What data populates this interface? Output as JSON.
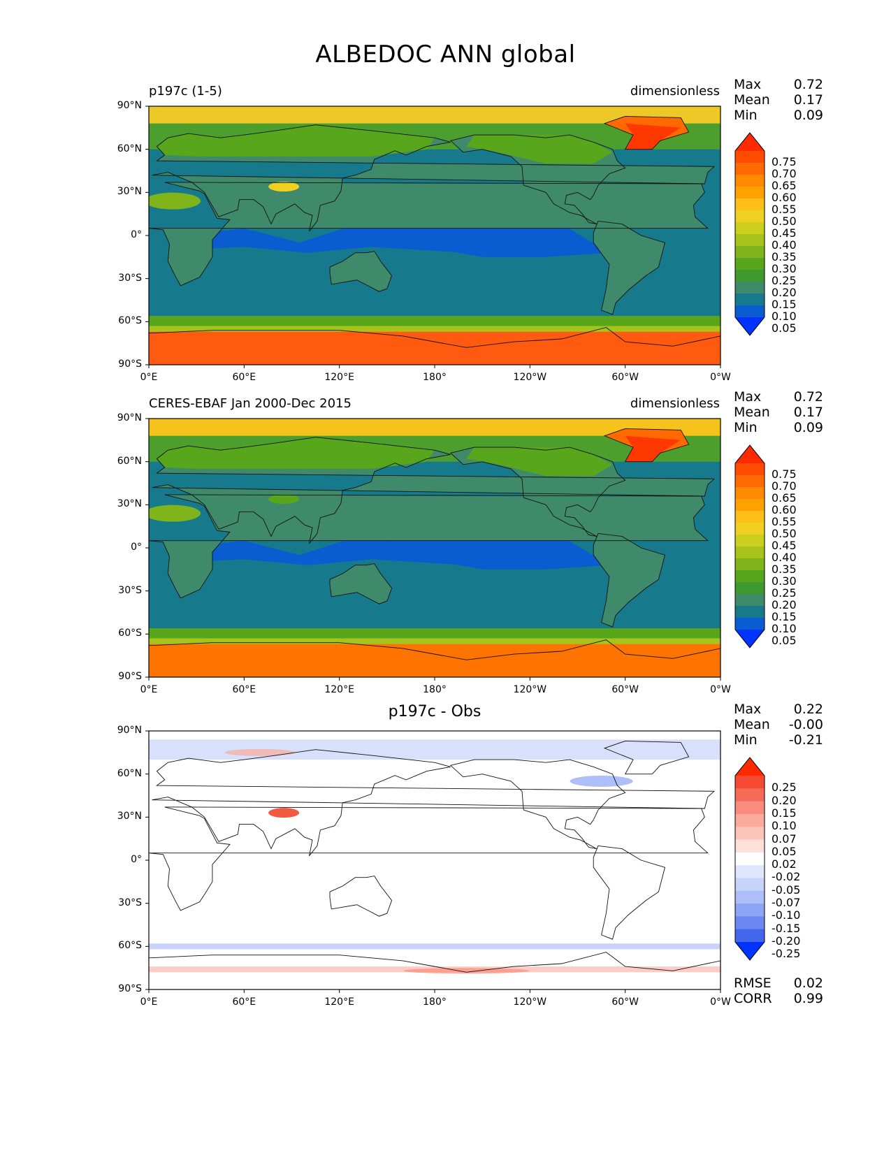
{
  "title": "ALBEDOC ANN global",
  "x_ticks": [
    "0°E",
    "60°E",
    "120°E",
    "180°",
    "120°W",
    "60°W",
    "0°W"
  ],
  "y_ticks": [
    "90°N",
    "60°N",
    "30°N",
    "0°",
    "30°S",
    "60°S",
    "90°S"
  ],
  "chart_data": [
    {
      "type": "heatmap",
      "left_label": "p197c (1-5)",
      "right_label": "dimensionless",
      "center_label": "",
      "stats": [
        {
          "name": "Max",
          "value": "0.72"
        },
        {
          "name": "Mean",
          "value": "0.17"
        },
        {
          "name": "Min",
          "value": "0.09"
        }
      ],
      "colorbar_levels": [
        "0.75",
        "0.70",
        "0.65",
        "0.60",
        "0.55",
        "0.50",
        "0.45",
        "0.40",
        "0.35",
        "0.30",
        "0.25",
        "0.20",
        "0.15",
        "0.10",
        "0.05"
      ],
      "colorbar_colors": [
        "#ff2a00",
        "#ff4c00",
        "#ff6a00",
        "#ff8a00",
        "#ffa200",
        "#ffbf1a",
        "#f0d020",
        "#cdcf1e",
        "#a8c31c",
        "#7fb51a",
        "#57a61c",
        "#3f9a2e",
        "#3f8a6a",
        "#177a8c",
        "#0a5cd0",
        "#0033ff"
      ],
      "regions": {
        "north_cap": "#ecc926",
        "south_cap": "#ff5a10",
        "ocean": "#177a8c",
        "tropical_ocean": "#0a5cd0",
        "land": "#3f8a6a"
      }
    },
    {
      "type": "heatmap",
      "left_label": "CERES-EBAF Jan 2000-Dec 2015",
      "right_label": "dimensionless",
      "center_label": "",
      "stats": [
        {
          "name": "Max",
          "value": "0.72"
        },
        {
          "name": "Mean",
          "value": "0.17"
        },
        {
          "name": "Min",
          "value": "0.09"
        }
      ],
      "colorbar_levels": [
        "0.75",
        "0.70",
        "0.65",
        "0.60",
        "0.55",
        "0.50",
        "0.45",
        "0.40",
        "0.35",
        "0.30",
        "0.25",
        "0.20",
        "0.15",
        "0.10",
        "0.05"
      ],
      "colorbar_colors": [
        "#ff2a00",
        "#ff4c00",
        "#ff6a00",
        "#ff8a00",
        "#ffa200",
        "#ffbf1a",
        "#f0d020",
        "#cdcf1e",
        "#a8c31c",
        "#7fb51a",
        "#57a61c",
        "#3f9a2e",
        "#3f8a6a",
        "#177a8c",
        "#0a5cd0",
        "#0033ff"
      ],
      "regions": {
        "north_cap": "#f6c21c",
        "south_cap": "#ff7400",
        "ocean": "#177a8c",
        "tropical_ocean": "#0a5cd0",
        "land": "#3f8a6a"
      }
    },
    {
      "type": "heatmap",
      "left_label": "",
      "right_label": "",
      "center_label": "p197c - Obs",
      "stats": [
        {
          "name": "Max",
          "value": "0.22"
        },
        {
          "name": "Mean",
          "value": "-0.00"
        },
        {
          "name": "Min",
          "value": "-0.21"
        }
      ],
      "extra_stats": [
        {
          "name": "RMSE",
          "value": "0.02"
        },
        {
          "name": "CORR",
          "value": "0.99"
        }
      ],
      "colorbar_levels": [
        "0.25",
        "0.20",
        "0.15",
        "0.10",
        "0.07",
        "0.05",
        "0.02",
        "-0.02",
        "-0.05",
        "-0.07",
        "-0.10",
        "-0.15",
        "-0.20",
        "-0.25"
      ],
      "colorbar_colors": [
        "#ff2a00",
        "#f44a33",
        "#f66a58",
        "#f98c7c",
        "#fbaa9c",
        "#fcc5bb",
        "#fde0da",
        "#ffffff",
        "#e0e6fb",
        "#c8d3fa",
        "#aebef8",
        "#8ea4f5",
        "#6b87f1",
        "#4466ee",
        "#0033ff"
      ],
      "regions": {
        "background": "#ffffff",
        "positive_anomaly": "#fbaa9c",
        "negative_anomaly": "#c8d3fa"
      }
    }
  ]
}
